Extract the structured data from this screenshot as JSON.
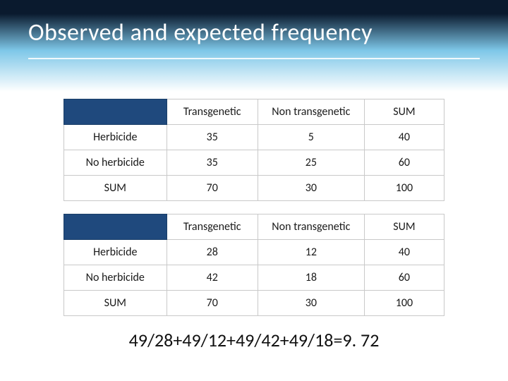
{
  "title": "Observed and expected frequency",
  "table1": {
    "columns": [
      "Transgenetic",
      "Non transgenetic",
      "SUM"
    ],
    "rows": [
      {
        "label": "Herbicide",
        "cells": [
          "35",
          "5",
          "40"
        ]
      },
      {
        "label": "No herbicide",
        "cells": [
          "35",
          "25",
          "60"
        ]
      },
      {
        "label": "SUM",
        "cells": [
          "70",
          "30",
          "100"
        ]
      }
    ]
  },
  "table2": {
    "columns": [
      "Transgenetic",
      "Non transgenetic",
      "SUM"
    ],
    "rows": [
      {
        "label": "Herbicide",
        "cells": [
          "28",
          "12",
          "40"
        ]
      },
      {
        "label": "No herbicide",
        "cells": [
          "42",
          "18",
          "60"
        ]
      },
      {
        "label": "SUM",
        "cells": [
          "70",
          "30",
          "100"
        ]
      }
    ]
  },
  "formula": "49/28+49/12+49/42+49/18=9. 72",
  "colors": {
    "header_blank_bg": "#1f497d",
    "band_top": "#0a1a2e",
    "band_mid": "#7ec7e8",
    "border": "#c9c9c9",
    "title_color": "#ffffff"
  },
  "table_col_widths_pct": [
    27,
    24,
    28,
    21
  ],
  "fontsizes": {
    "title": 34,
    "cell": 16,
    "formula": 26
  }
}
